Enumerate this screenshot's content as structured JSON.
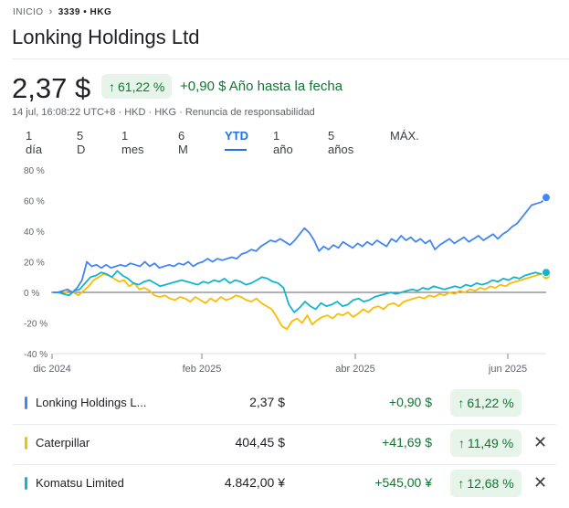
{
  "breadcrumb": {
    "home": "INICIO",
    "ticker": "3339 • HKG"
  },
  "header": {
    "title": "Lonking Holdings Ltd"
  },
  "quote": {
    "price": "2,37 $",
    "pct_badge": "61,22 %",
    "change": "+0,90 $ Año hasta la fecha",
    "meta": "14 jul, 16:08:22 UTC+8 · HKD · HKG · Renuncia de responsabilidad"
  },
  "ranges": {
    "items": [
      "1 día",
      "5 D",
      "1 mes",
      "6 M",
      "YTD",
      "1 año",
      "5 años",
      "MÁX."
    ],
    "selected": "YTD"
  },
  "chart_data": {
    "type": "line",
    "x_ticks": [
      "dic 2024",
      "feb 2025",
      "abr 2025",
      "jun 2025"
    ],
    "y_ticks": [
      "80 %",
      "60 %",
      "40 %",
      "20 %",
      "0 %",
      "-20 %",
      "-40 %"
    ],
    "ylim": [
      -40,
      80
    ],
    "ylabel": "",
    "xlabel": "",
    "grid": false,
    "series": [
      {
        "name": "Lonking Holdings L...",
        "color": "#4285f4",
        "values": [
          0,
          0,
          1,
          2,
          0,
          3,
          8,
          20,
          17,
          18,
          16,
          18,
          16,
          17,
          18,
          17,
          19,
          18,
          17,
          20,
          17,
          19,
          16,
          17,
          18,
          17,
          19,
          18,
          20,
          17,
          19,
          20,
          22,
          20,
          22,
          21,
          22,
          23,
          22,
          25,
          26,
          28,
          27,
          30,
          32,
          34,
          33,
          35,
          33,
          31,
          34,
          38,
          42,
          39,
          34,
          27,
          30,
          28,
          31,
          29,
          33,
          31,
          29,
          32,
          30,
          33,
          31,
          34,
          32,
          30,
          35,
          33,
          37,
          34,
          36,
          33,
          35,
          32,
          34,
          28,
          31,
          33,
          35,
          32,
          34,
          36,
          33,
          35,
          37,
          34,
          36,
          38,
          35,
          38,
          40,
          43,
          45,
          49,
          53,
          57,
          58,
          59,
          62
        ]
      },
      {
        "name": "Caterpillar",
        "color": "#fbbc04",
        "values": [
          0,
          0,
          -1,
          1,
          0,
          -2,
          1,
          4,
          8,
          10,
          12,
          11,
          9,
          7,
          8,
          4,
          6,
          2,
          3,
          1,
          -2,
          -3,
          -2,
          -4,
          -5,
          -3,
          -4,
          -6,
          -3,
          -5,
          -7,
          -4,
          -6,
          -3,
          -5,
          -4,
          -2,
          -3,
          -5,
          -6,
          -4,
          -7,
          -9,
          -11,
          -16,
          -22,
          -24,
          -19,
          -17,
          -20,
          -15,
          -21,
          -18,
          -16,
          -15,
          -17,
          -14,
          -15,
          -13,
          -16,
          -14,
          -11,
          -13,
          -10,
          -9,
          -11,
          -8,
          -7,
          -9,
          -6,
          -5,
          -4,
          -3,
          -4,
          -2,
          -3,
          -1,
          -2,
          0,
          -1,
          1,
          0,
          2,
          1,
          3,
          2,
          4,
          3,
          5,
          4,
          6,
          7,
          8,
          9,
          10,
          11,
          12,
          11
        ]
      },
      {
        "name": "Komatsu Limited",
        "color": "#12b5cb",
        "values": [
          0,
          0,
          -1,
          -2,
          1,
          2,
          6,
          10,
          11,
          13,
          12,
          10,
          14,
          11,
          9,
          6,
          5,
          7,
          8,
          6,
          4,
          5,
          6,
          7,
          8,
          7,
          6,
          5,
          7,
          6,
          8,
          7,
          9,
          6,
          8,
          7,
          5,
          6,
          8,
          10,
          9,
          7,
          6,
          3,
          -8,
          -13,
          -10,
          -6,
          -9,
          -11,
          -7,
          -9,
          -8,
          -6,
          -9,
          -8,
          -5,
          -4,
          -6,
          -5,
          -3,
          -2,
          -1,
          0,
          -1,
          0,
          1,
          2,
          1,
          3,
          2,
          4,
          3,
          2,
          3,
          4,
          3,
          5,
          4,
          6,
          5,
          6,
          8,
          7,
          9,
          8,
          10,
          9,
          11,
          12,
          13,
          12,
          13
        ]
      }
    ]
  },
  "legend": [
    {
      "name": "Lonking Holdings L...",
      "price": "2,37 $",
      "change": "+0,90 $",
      "pct": "61,22 %",
      "color": "#4285f4",
      "removable": false
    },
    {
      "name": "Caterpillar",
      "price": "404,45 $",
      "change": "+41,69 $",
      "pct": "11,49 %",
      "color": "#fbbc04",
      "removable": true
    },
    {
      "name": "Komatsu Limited",
      "price": "4.842,00 ¥",
      "change": "+545,00 ¥",
      "pct": "12,68 %",
      "color": "#12b5cb",
      "removable": true
    }
  ],
  "icons": {
    "arrow_up": "↑",
    "chevron": "›",
    "close": "✕"
  }
}
